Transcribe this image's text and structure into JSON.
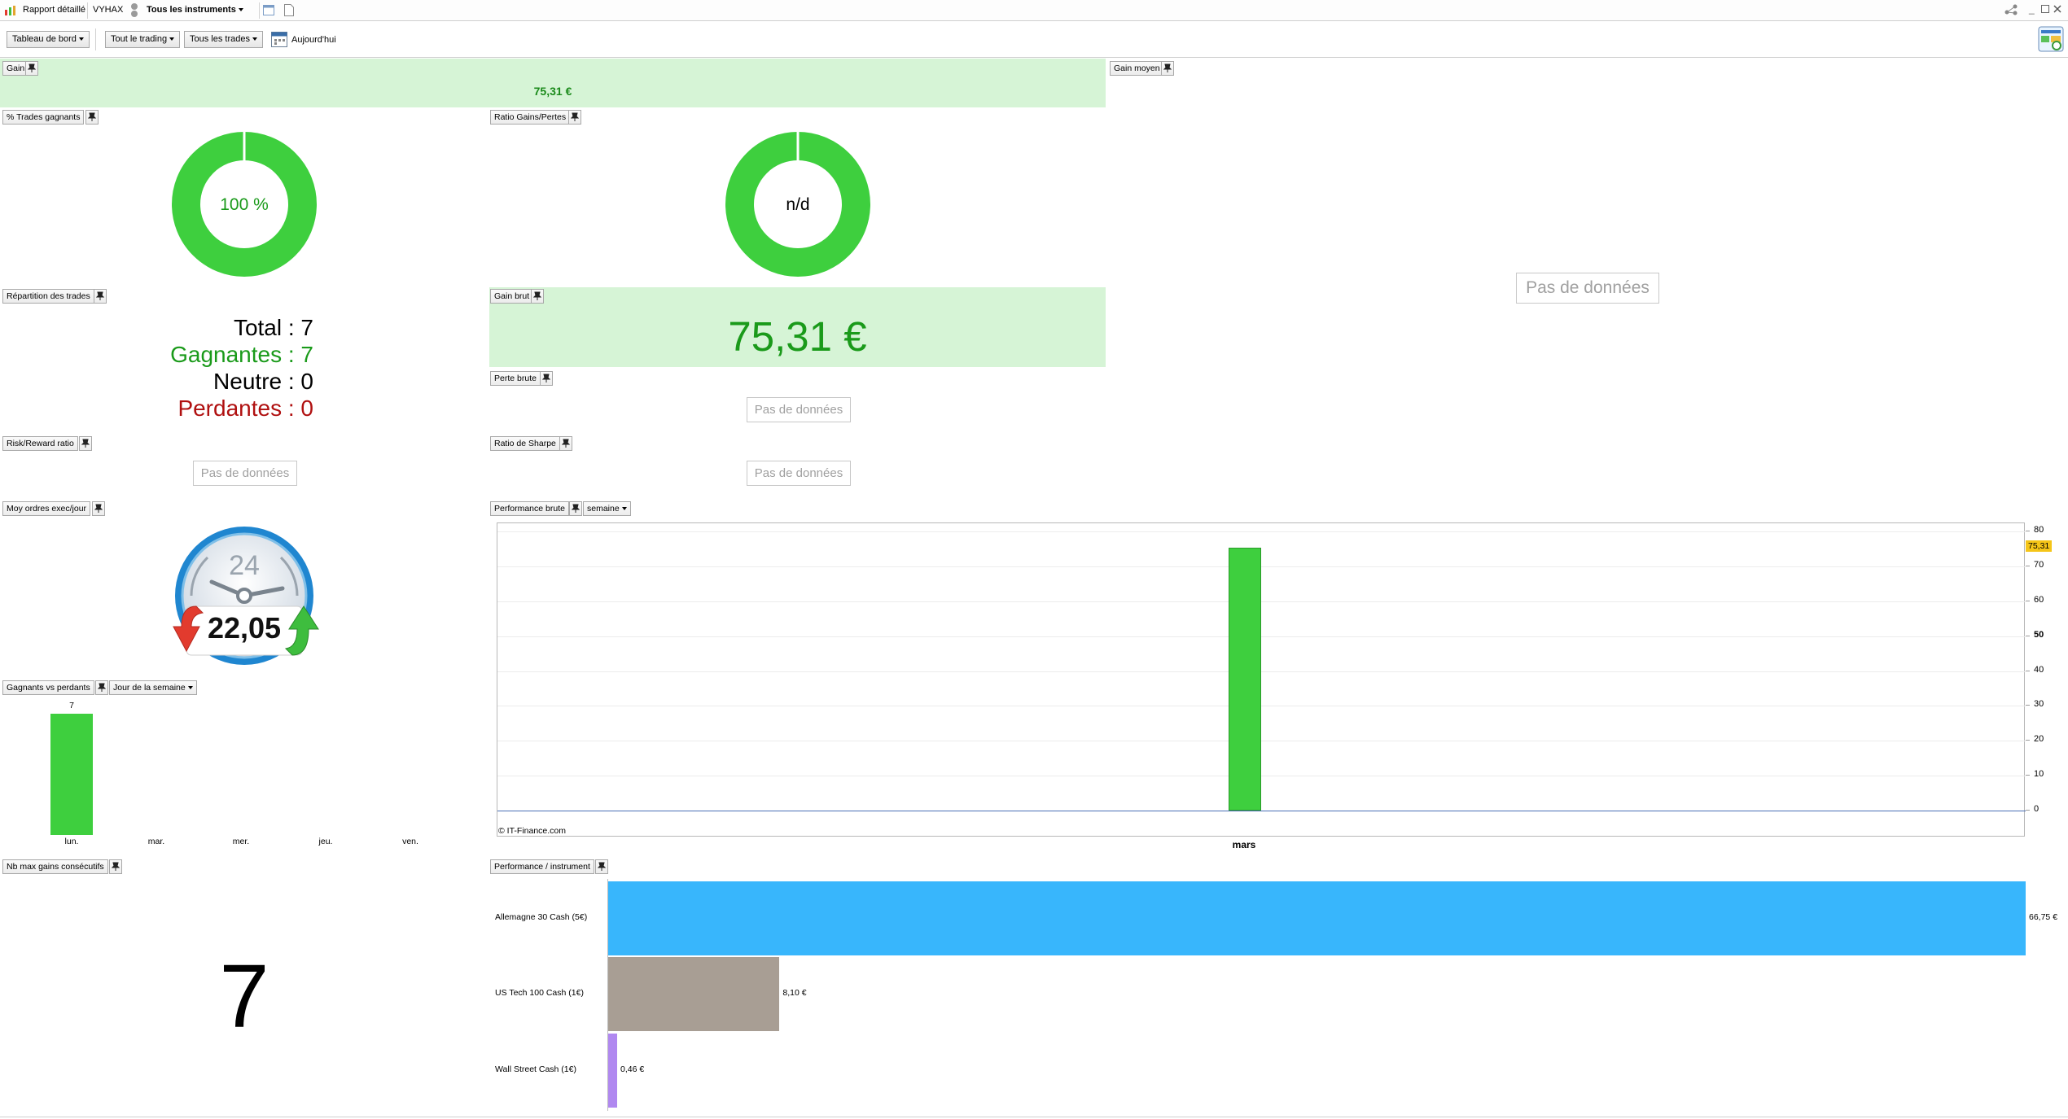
{
  "titlebar": {
    "report": "Rapport détaillé",
    "account": "VYHAX",
    "instruments": "Tous les instruments"
  },
  "toolbar": {
    "dashboard": "Tableau de bord",
    "trading": "Tout le trading",
    "trades": "Tous les trades",
    "today": "Aujourd'hui"
  },
  "panels": {
    "gain": {
      "label": "Gain",
      "value": "75,31 €"
    },
    "gain_moyen": {
      "label": "Gain moyen",
      "nodata": "Pas de données"
    },
    "pct_trades": {
      "label": "% Trades gagnants",
      "value": "100 %",
      "fraction": 1.0
    },
    "ratio_gp": {
      "label": "Ratio Gains/Pertes",
      "value": "n/d"
    },
    "repartition": {
      "label": "Répartition des trades",
      "total": "Total : 7",
      "gagnantes": "Gagnantes : 7",
      "neutre": "Neutre : 0",
      "perdantes": "Perdantes : 0"
    },
    "gain_brut": {
      "label": "Gain brut",
      "value": "75,31 €"
    },
    "perte_brute": {
      "label": "Perte brute",
      "nodata": "Pas de données"
    },
    "risk_reward": {
      "label": "Risk/Reward ratio",
      "nodata": "Pas de données"
    },
    "sharpe": {
      "label": "Ratio de Sharpe",
      "nodata": "Pas de données"
    },
    "moy_ordres": {
      "label": "Moy ordres exec/jour",
      "value": "22,05",
      "clock": "24"
    },
    "perf_brute": {
      "label": "Performance brute",
      "period": "semaine",
      "credit": "© IT-Finance.com",
      "marker": "75,31"
    },
    "gvp": {
      "label": "Gagnants vs perdants",
      "period": "Jour de la semaine"
    },
    "nb_max": {
      "label": "Nb max gains consécutifs",
      "value": "7"
    },
    "perf_instr": {
      "label": "Performance / instrument"
    }
  },
  "chart_data": [
    {
      "type": "bar",
      "categories": [
        "mars"
      ],
      "values": [
        75.31
      ],
      "ylim": [
        0,
        80
      ],
      "yticks": [
        0,
        10,
        20,
        30,
        40,
        50,
        60,
        70,
        80
      ],
      "color": "#3ecf3e"
    },
    {
      "type": "bar",
      "categories": [
        "lun.",
        "mar.",
        "mer.",
        "jeu.",
        "ven."
      ],
      "values": [
        7,
        0,
        0,
        0,
        0
      ],
      "data_labels": [
        "7",
        "",
        "",
        "",
        ""
      ],
      "color": "#3ecf3e"
    },
    {
      "type": "bar",
      "orientation": "horizontal",
      "categories": [
        "Allemagne 30 Cash (5€)",
        "US Tech 100 Cash (1€)",
        "Wall Street Cash (1€)"
      ],
      "values": [
        66.75,
        8.1,
        0.46
      ],
      "data_labels": [
        "66,75 €",
        "8,10 €",
        "0,46 €"
      ],
      "colors": [
        "#38b6fc",
        "#a89e94",
        "#b088f0"
      ]
    }
  ]
}
